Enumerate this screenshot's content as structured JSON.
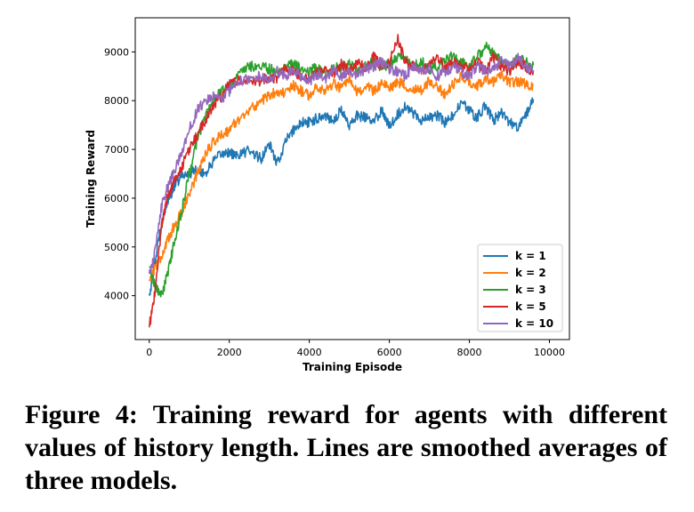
{
  "caption": "Figure 4: Training reward for agents with different values of history length.  Lines are smoothed averages of three models.",
  "chart_data": {
    "type": "line",
    "title": "",
    "xlabel": "Training Episode",
    "ylabel": "Training Reward",
    "xlim": [
      -350,
      10500
    ],
    "ylim": [
      3100,
      9700
    ],
    "xticks": [
      0,
      2000,
      4000,
      6000,
      8000,
      10000
    ],
    "xtick_labels": [
      "0",
      "2000",
      "4000",
      "6000",
      "8000",
      "10000"
    ],
    "yticks": [
      4000,
      5000,
      6000,
      7000,
      8000,
      9000
    ],
    "ytick_labels": [
      "4000",
      "5000",
      "6000",
      "7000",
      "8000",
      "9000"
    ],
    "grid": false,
    "legend_position": "lower-right",
    "series": [
      {
        "name": "k = 1",
        "color": "#1f77b4",
        "x": [
          0,
          150,
          300,
          450,
          600,
          800,
          1000,
          1200,
          1400,
          1600,
          1800,
          2000,
          2200,
          2500,
          2800,
          3000,
          3200,
          3400,
          3600,
          3800,
          4000,
          4200,
          4400,
          4600,
          4800,
          5000,
          5200,
          5400,
          5600,
          5800,
          6000,
          6200,
          6400,
          6600,
          6800,
          7000,
          7200,
          7400,
          7600,
          7800,
          8000,
          8200,
          8400,
          8600,
          8800,
          9000,
          9200,
          9400,
          9600
        ],
        "y": [
          4000,
          4700,
          5500,
          5900,
          6200,
          6450,
          6500,
          6600,
          6500,
          6750,
          6900,
          6950,
          6850,
          7000,
          6800,
          7100,
          6700,
          7150,
          7400,
          7550,
          7550,
          7650,
          7700,
          7600,
          7800,
          7500,
          7700,
          7650,
          7550,
          7800,
          7500,
          7700,
          7900,
          7750,
          7600,
          7650,
          7700,
          7550,
          7700,
          7950,
          7800,
          7650,
          7900,
          7600,
          7750,
          7550,
          7450,
          7700,
          8000
        ]
      },
      {
        "name": "k = 2",
        "color": "#ff7f0e",
        "x": [
          0,
          150,
          300,
          450,
          600,
          800,
          1000,
          1200,
          1400,
          1600,
          1800,
          2000,
          2200,
          2500,
          2800,
          3000,
          3200,
          3400,
          3600,
          3800,
          4000,
          4200,
          4400,
          4600,
          4800,
          5000,
          5200,
          5400,
          5600,
          5800,
          6000,
          6200,
          6400,
          6600,
          6800,
          7000,
          7200,
          7400,
          7600,
          7800,
          8000,
          8200,
          8400,
          8600,
          8800,
          9000,
          9200,
          9400,
          9600
        ],
        "y": [
          4300,
          4600,
          4800,
          5100,
          5400,
          5700,
          6100,
          6500,
          6900,
          7150,
          7300,
          7400,
          7600,
          7800,
          8000,
          8100,
          8200,
          8150,
          8300,
          8200,
          8100,
          8300,
          8200,
          8350,
          8250,
          8400,
          8150,
          8300,
          8200,
          8350,
          8250,
          8400,
          8300,
          8250,
          8200,
          8400,
          8300,
          8100,
          8350,
          8500,
          8400,
          8300,
          8450,
          8400,
          8500,
          8350,
          8400,
          8350,
          8300
        ]
      },
      {
        "name": "k = 3",
        "color": "#2ca02c",
        "x": [
          0,
          150,
          300,
          450,
          600,
          800,
          1000,
          1200,
          1400,
          1600,
          1800,
          2000,
          2200,
          2500,
          2800,
          3000,
          3200,
          3400,
          3600,
          3800,
          4000,
          4200,
          4400,
          4600,
          4800,
          5000,
          5200,
          5400,
          5600,
          5800,
          6000,
          6200,
          6400,
          6600,
          6800,
          7000,
          7200,
          7400,
          7600,
          7800,
          8000,
          8200,
          8400,
          8600,
          8800,
          9000,
          9200,
          9400,
          9600
        ],
        "y": [
          4600,
          4200,
          4000,
          4400,
          5000,
          5700,
          6500,
          7200,
          7700,
          8000,
          8200,
          8300,
          8500,
          8700,
          8700,
          8650,
          8600,
          8700,
          8750,
          8650,
          8600,
          8700,
          8550,
          8650,
          8700,
          8750,
          8600,
          8700,
          8800,
          8700,
          8750,
          8900,
          8850,
          8700,
          8800,
          8650,
          8700,
          8800,
          8950,
          8800,
          8700,
          8900,
          9100,
          9000,
          8800,
          8700,
          8850,
          8800,
          8700
        ]
      },
      {
        "name": "k = 5",
        "color": "#d62728",
        "x": [
          0,
          150,
          300,
          450,
          600,
          800,
          1000,
          1200,
          1400,
          1600,
          1800,
          2000,
          2200,
          2500,
          2800,
          3000,
          3200,
          3400,
          3600,
          3800,
          4000,
          4200,
          4400,
          4600,
          4800,
          5000,
          5200,
          5400,
          5600,
          5800,
          6000,
          6200,
          6400,
          6600,
          6800,
          7000,
          7200,
          7400,
          7600,
          7800,
          8000,
          8200,
          8400,
          8600,
          8800,
          9000,
          9200,
          9400,
          9600
        ],
        "y": [
          3350,
          4100,
          5400,
          6000,
          6300,
          6600,
          7000,
          7300,
          7600,
          7900,
          8100,
          8350,
          8400,
          8450,
          8400,
          8500,
          8450,
          8650,
          8600,
          8500,
          8400,
          8600,
          8700,
          8500,
          8750,
          8600,
          8800,
          8650,
          8900,
          8700,
          8800,
          9300,
          8800,
          8700,
          8600,
          8700,
          8900,
          8650,
          8800,
          8700,
          8650,
          8800,
          8600,
          8900,
          8700,
          8600,
          8800,
          8700,
          8600
        ]
      },
      {
        "name": "k = 10",
        "color": "#9467bd",
        "x": [
          0,
          150,
          300,
          450,
          600,
          800,
          1000,
          1200,
          1400,
          1600,
          1800,
          2000,
          2200,
          2500,
          2800,
          3000,
          3200,
          3400,
          3600,
          3800,
          4000,
          4200,
          4400,
          4600,
          4800,
          5000,
          5200,
          5400,
          5600,
          5800,
          6000,
          6200,
          6400,
          6600,
          6800,
          7000,
          7200,
          7400,
          7600,
          7800,
          8000,
          8200,
          8400,
          8600,
          8800,
          9000,
          9200,
          9400,
          9600
        ],
        "y": [
          4450,
          4900,
          5800,
          6200,
          6500,
          6900,
          7400,
          7800,
          8000,
          8100,
          8000,
          8200,
          8400,
          8450,
          8500,
          8400,
          8600,
          8500,
          8650,
          8500,
          8400,
          8550,
          8450,
          8650,
          8500,
          8600,
          8500,
          8650,
          8700,
          8800,
          8650,
          8600,
          8500,
          8700,
          8600,
          8650,
          8500,
          8600,
          8700,
          8600,
          8500,
          8700,
          8600,
          8650,
          8800,
          8700,
          8900,
          8700,
          8600
        ]
      }
    ]
  }
}
